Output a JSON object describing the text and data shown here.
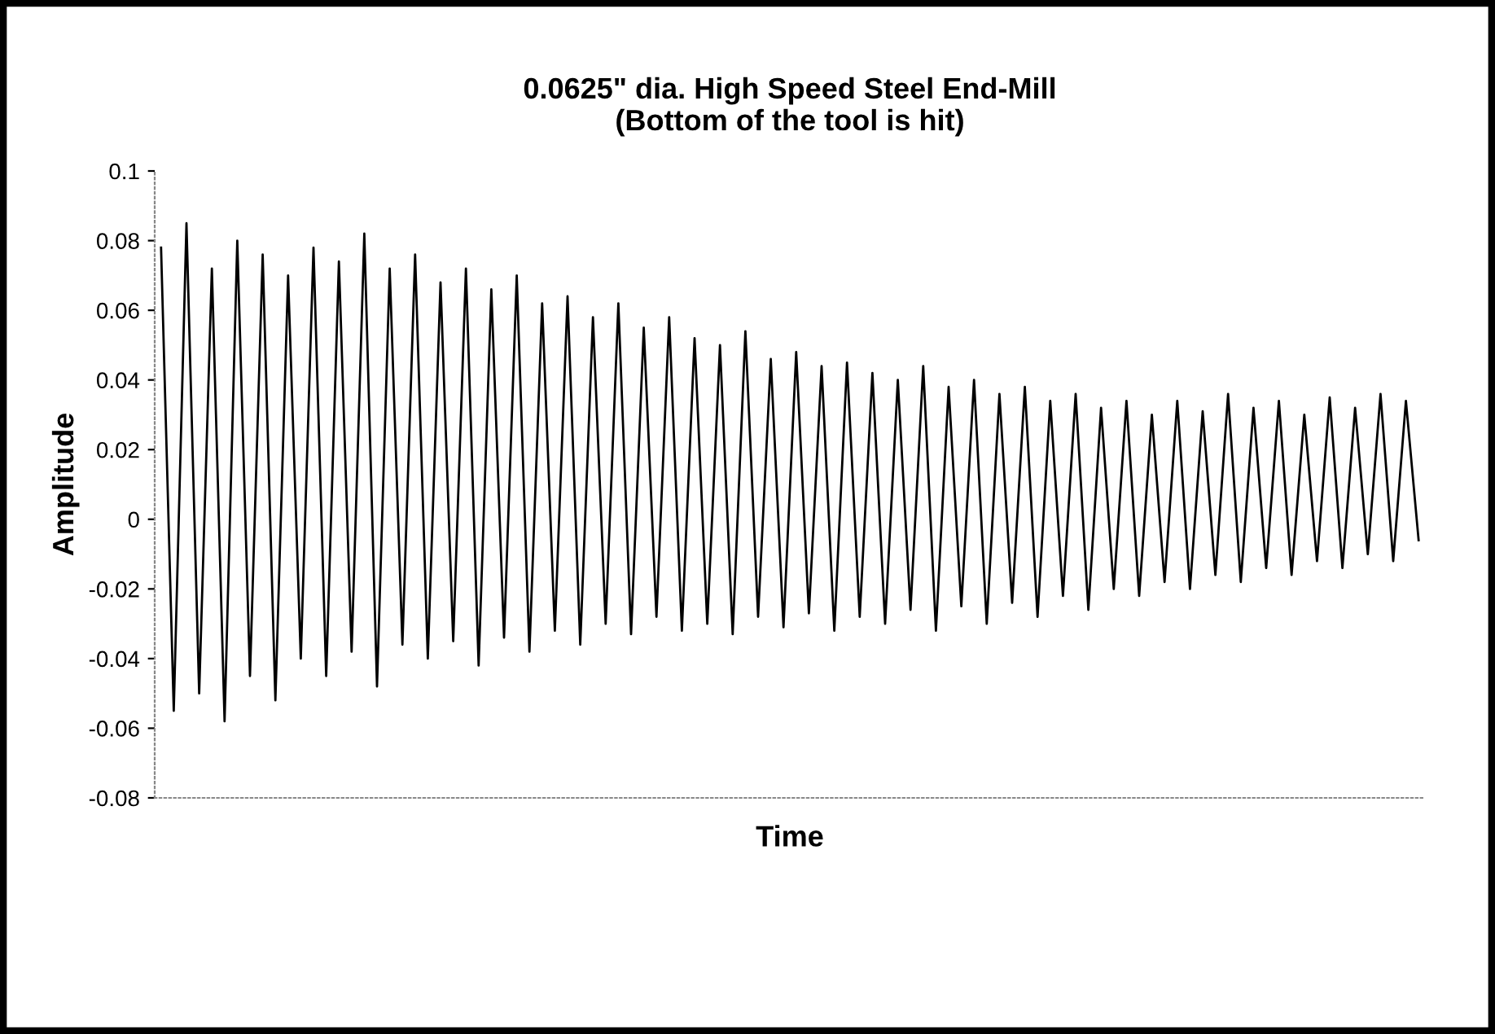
{
  "chart_data": {
    "type": "line",
    "title": "0.0625\" dia. High Speed Steel End-Mill\n(Bottom of the tool is hit)",
    "xlabel": "Time",
    "ylabel": "Amplitude",
    "categories": [
      null,
      null,
      null,
      null,
      null,
      null,
      null,
      null,
      null,
      null,
      null,
      null,
      null,
      null,
      null,
      null,
      null,
      null,
      null,
      null,
      null,
      null,
      null,
      null,
      null,
      null,
      null,
      null,
      null,
      null,
      null,
      null,
      null,
      null,
      null,
      null,
      null,
      null,
      null,
      null,
      null,
      null,
      null,
      null,
      null,
      null,
      null,
      null,
      null,
      null,
      null,
      null,
      null,
      null,
      null,
      null,
      null,
      null,
      null,
      null,
      null,
      null,
      null,
      null,
      null,
      null,
      null,
      null,
      null,
      null,
      null,
      null,
      null,
      null,
      null,
      null,
      null,
      null,
      null,
      null,
      null,
      null,
      null,
      null,
      null,
      null,
      null,
      null,
      null,
      null,
      null,
      null,
      null,
      null,
      null,
      null,
      null,
      null,
      null,
      null
    ],
    "series": [
      {
        "color": "#000000",
        "values": [
          0.078,
          -0.055,
          0.085,
          -0.05,
          0.072,
          -0.058,
          0.08,
          -0.045,
          0.076,
          -0.052,
          0.07,
          -0.04,
          0.078,
          -0.045,
          0.074,
          -0.038,
          0.082,
          -0.048,
          0.072,
          -0.036,
          0.076,
          -0.04,
          0.068,
          -0.035,
          0.072,
          -0.042,
          0.066,
          -0.034,
          0.07,
          -0.038,
          0.062,
          -0.032,
          0.064,
          -0.036,
          0.058,
          -0.03,
          0.062,
          -0.033,
          0.055,
          -0.028,
          0.058,
          -0.032,
          0.052,
          -0.03,
          0.05,
          -0.033,
          0.054,
          -0.028,
          0.046,
          -0.031,
          0.048,
          -0.027,
          0.044,
          -0.032,
          0.045,
          -0.028,
          0.042,
          -0.03,
          0.04,
          -0.026,
          0.044,
          -0.032,
          0.038,
          -0.025,
          0.04,
          -0.03,
          0.036,
          -0.024,
          0.038,
          -0.028,
          0.034,
          -0.022,
          0.036,
          -0.026,
          0.032,
          -0.02,
          0.034,
          -0.022,
          0.03,
          -0.018,
          0.034,
          -0.02,
          0.031,
          -0.016,
          0.036,
          -0.018,
          0.032,
          -0.014,
          0.034,
          -0.016,
          0.03,
          -0.012,
          0.035,
          -0.014,
          0.032,
          -0.01,
          0.036,
          -0.012,
          0.034,
          -0.006
        ]
      }
    ],
    "ylim": [
      -0.08,
      0.1
    ],
    "yticks": [
      -0.08,
      -0.06,
      -0.04,
      -0.02,
      0,
      0.02,
      0.04,
      0.06,
      0.08,
      0.1
    ],
    "tick_labels": "y",
    "grid": false,
    "legend": false,
    "marker": "none",
    "line_style": "solid"
  }
}
